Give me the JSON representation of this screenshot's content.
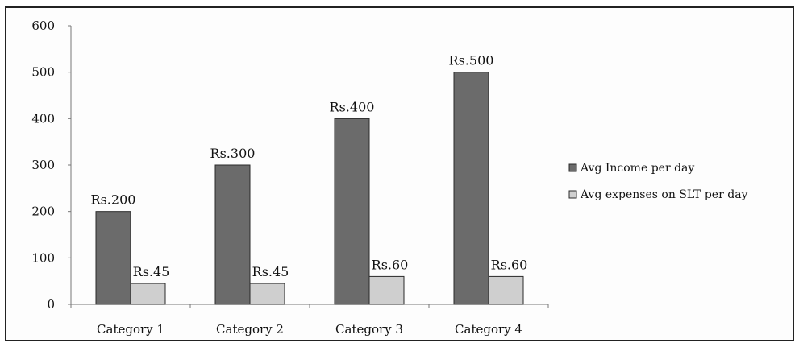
{
  "chart_data": {
    "type": "bar",
    "categories": [
      "Category 1",
      "Category 2",
      "Category 3",
      "Category 4"
    ],
    "series": [
      {
        "name": "Avg Income per day",
        "values": [
          200,
          300,
          400,
          500
        ],
        "labels": [
          "Rs.200",
          "Rs.300",
          "Rs.400",
          "Rs.500"
        ],
        "color": "#6b6b6b"
      },
      {
        "name": "Avg expenses on SLT per day",
        "values": [
          45,
          45,
          60,
          60
        ],
        "labels": [
          "Rs.45",
          "Rs.45",
          "Rs.60",
          "Rs.60"
        ],
        "color": "#cfcfcf"
      }
    ],
    "y_ticks": [
      "0",
      "100",
      "200",
      "300",
      "400",
      "500",
      "600"
    ],
    "ylim": [
      0,
      600
    ],
    "grid": false,
    "legend_position": "right"
  }
}
